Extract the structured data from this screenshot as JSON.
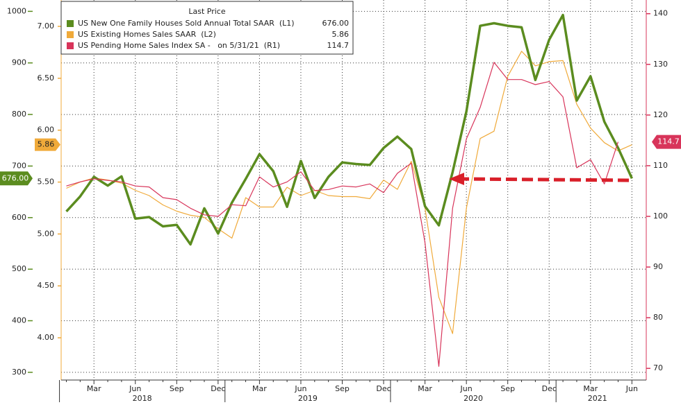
{
  "chart_data": {
    "type": "line",
    "legend_title": "Last Price",
    "categories": [
      null,
      null,
      "Mar",
      null,
      null,
      "Jun",
      null,
      null,
      "Sep",
      null,
      null,
      "Dec",
      null,
      null,
      "Mar",
      null,
      null,
      "Jun",
      null,
      null,
      "Sep",
      null,
      null,
      "Dec",
      null,
      null,
      "Mar",
      null,
      null,
      "Jun",
      null,
      null,
      "Sep",
      null,
      null,
      "Dec",
      null,
      null,
      "Mar",
      null,
      null,
      "Jun"
    ],
    "years": [
      "2018",
      "2019",
      "2020",
      "2021"
    ],
    "series": [
      {
        "name": "US New One Family Houses Sold Annual Total SAAR  (L1)",
        "color": "#5b8c1f",
        "axis": "y",
        "last_price": "676.00",
        "values": [
          612,
          641,
          679,
          662,
          680,
          598,
          601,
          583,
          586,
          548,
          618,
          569,
          629,
          675,
          723,
          690,
          621,
          710,
          638,
          679,
          707,
          704,
          702,
          735,
          757,
          733,
          622,
          585,
          688,
          806,
          972,
          977,
          972,
          969,
          867,
          945,
          993,
          827,
          874,
          786,
          735,
          676
        ]
      },
      {
        "name": "US Existing Homes Sales SAAR  (L2)",
        "color": "#f0aa3a",
        "axis": "y2",
        "last_price": "5.86",
        "values": [
          5.44,
          5.5,
          5.54,
          5.52,
          5.49,
          5.42,
          5.37,
          5.28,
          5.22,
          5.18,
          5.16,
          5.05,
          4.96,
          5.35,
          5.26,
          5.26,
          5.45,
          5.37,
          5.42,
          5.37,
          5.36,
          5.36,
          5.34,
          5.52,
          5.43,
          5.7,
          5.25,
          4.39,
          4.04,
          5.25,
          5.92,
          5.99,
          6.52,
          6.76,
          6.62,
          6.66,
          6.67,
          6.25,
          6.02,
          5.88,
          5.8,
          5.86
        ]
      },
      {
        "name": "US Pending Home Sales Index SA -   on 5/31/21  (R1)",
        "color": "#d8345a",
        "axis": "y3",
        "last_price": "114.7",
        "values": [
          106.0,
          106.8,
          107.4,
          107.1,
          106.8,
          106.0,
          105.8,
          103.7,
          103.3,
          101.6,
          100.3,
          100.0,
          102.3,
          102.1,
          107.8,
          105.8,
          106.8,
          108.8,
          105.1,
          105.3,
          106.0,
          105.8,
          106.4,
          104.7,
          108.5,
          110.5,
          94.8,
          70.4,
          101.6,
          115.3,
          121.5,
          130.4,
          127.0,
          127.0,
          126.0,
          126.6,
          123.6,
          109.6,
          111.2,
          106.4,
          114.7,
          null
        ]
      }
    ],
    "ylim": [
      285,
      1022
    ],
    "yticks": [
      300,
      400,
      500,
      600,
      700,
      800,
      900,
      1000
    ],
    "y2lim": [
      3.593,
      7.254
    ],
    "y2ticks": [
      {
        "value": 4,
        "label": "4.00"
      },
      {
        "value": 4.5,
        "label": "4.50"
      },
      {
        "value": 5,
        "label": "5.00"
      },
      {
        "value": 5.5,
        "label": "5.50"
      },
      {
        "value": 6,
        "label": "6.00"
      },
      {
        "value": 6.5,
        "label": "6.50"
      },
      {
        "value": 7,
        "label": "7.00"
      }
    ],
    "y3lim": [
      67.7,
      142.7
    ],
    "y3ticks": [
      70,
      80,
      90,
      100,
      110,
      120,
      130,
      140
    ],
    "grid": true
  }
}
